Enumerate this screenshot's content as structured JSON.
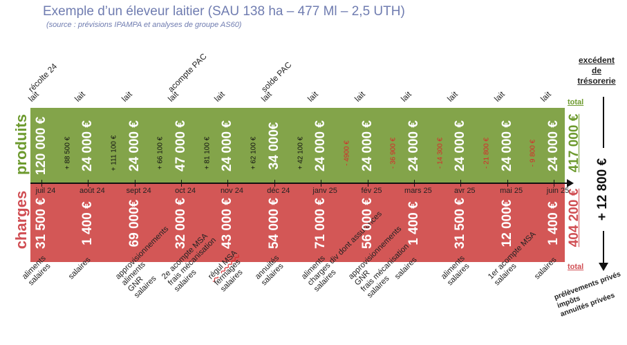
{
  "title": "Exemple d’un éleveur laitier (SAU 138 ha – 477 Ml – 2,5 UTH)",
  "subtitle": "(source : prévisions IPAMPA et analyses de groupe AS60)",
  "band_labels": {
    "produits": "produits",
    "charges": "charges"
  },
  "colors": {
    "produits": "#83a44a",
    "charges": "#d35756",
    "title": "#6f7cb0",
    "negative": "#d8262a"
  },
  "months": [
    {
      "label": "juil 24",
      "top": [
        "récolte 24",
        "lait"
      ],
      "produit": "120 000 €",
      "charge": "31 500 €",
      "bottom": [
        "aliments",
        "salaires"
      ]
    },
    {
      "label": "août 24",
      "top": [
        "lait"
      ],
      "produit": "24 000 €",
      "charge": "1 400 €",
      "bottom": [
        "salaires"
      ]
    },
    {
      "label": "sept 24",
      "top": [
        "lait"
      ],
      "produit": "24 000 €",
      "charge": "69 000€",
      "bottom": [
        "approvisionnements",
        "aliments",
        "GNR",
        "salaires"
      ]
    },
    {
      "label": "oct 24",
      "top": [
        "acompte PAC",
        "lait"
      ],
      "produit": "47 000 €",
      "charge": "32 000 €",
      "bottom": [
        "2e acompte MSA",
        "frais mécanisation",
        "salaires"
      ]
    },
    {
      "label": "nov 24",
      "top": [
        "lait"
      ],
      "produit": "24 000 €",
      "charge": "43 000 €",
      "bottom": [
        "régul MSA",
        "fermages",
        "salaires"
      ]
    },
    {
      "label": "déc 24",
      "top": [
        "solde PAC",
        "lait"
      ],
      "produit": "34 000€",
      "charge": "54 000 €",
      "bottom": [
        "annuités",
        "salaires"
      ]
    },
    {
      "label": "janv 25",
      "top": [
        "lait"
      ],
      "produit": "24 000 €",
      "charge": "71 000 €",
      "bottom": [
        "aliments",
        "charges div dont assurances",
        "salaires"
      ]
    },
    {
      "label": "fév 25",
      "top": [
        "lait"
      ],
      "produit": "24 000 €",
      "charge": "56 000 €",
      "bottom": [
        "approvisionnements",
        "GNR",
        "frais mécanisation",
        "salaires"
      ]
    },
    {
      "label": "mars 25",
      "top": [
        "lait"
      ],
      "produit": "24 000 €",
      "charge": "1 400 €",
      "bottom": [
        "salaires"
      ]
    },
    {
      "label": "avr 25",
      "top": [
        "lait"
      ],
      "produit": "24 000 €",
      "charge": "31 500 €",
      "bottom": [
        "aliments",
        "salaires"
      ]
    },
    {
      "label": "mai 25",
      "top": [
        "lait"
      ],
      "produit": "24 000 €",
      "charge": "12 000€",
      "bottom": [
        "1er acompte MSA",
        "salaires"
      ]
    },
    {
      "label": "juin 25",
      "top": [
        "lait"
      ],
      "produit": "24 000 €",
      "charge": "1 400 €",
      "bottom": [
        "salaires"
      ]
    }
  ],
  "cumulative": [
    "+ 88 500 €",
    "+ 111 100 €",
    "+ 66 100 €",
    "+ 81 100 €",
    "+ 62 100 €",
    "+ 42 100 €",
    "- 4900 €",
    "- 36 900 €",
    "- 14 300 €",
    "- 21 800 €",
    "- 9 800 €"
  ],
  "totals": {
    "label": "total",
    "produits": "417 000 €",
    "charges": "404 200 €"
  },
  "excedent": {
    "lines": [
      "excédent",
      "de",
      "trésorerie"
    ],
    "value": "+ 12 800 €"
  },
  "private_costs": [
    "prélèvements privés",
    "impôts",
    "annuités privées"
  ]
}
